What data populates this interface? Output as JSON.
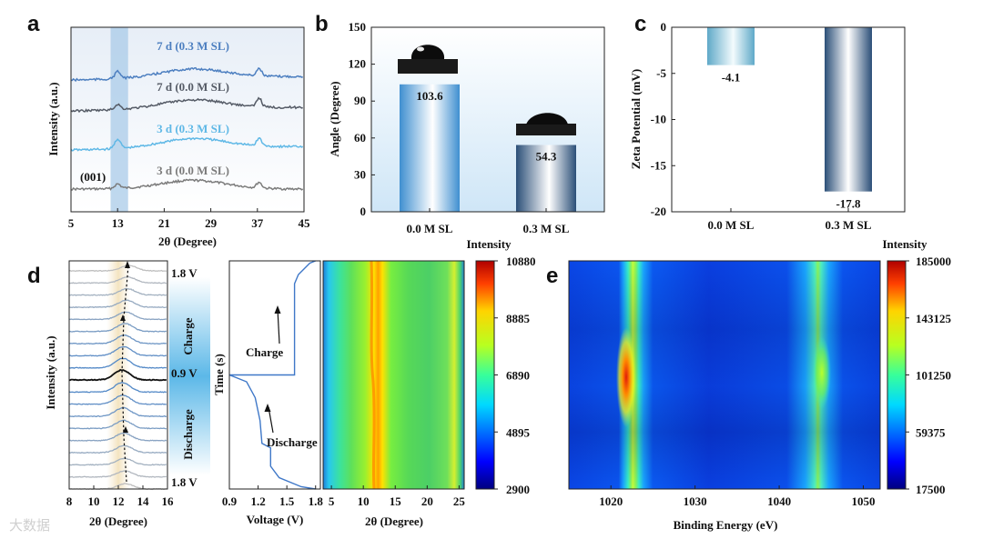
{
  "chart_data": [
    {
      "id": "a",
      "panel_label": "a",
      "type": "line",
      "xlabel": "2θ (Degree)",
      "ylabel": "Intensity (a.u.)",
      "xlim": [
        5,
        45
      ],
      "xticks": [
        "5",
        "13",
        "21",
        "29",
        "37",
        "45"
      ],
      "peak_annotation": "(001)",
      "highlight_range": [
        11.8,
        14.8
      ],
      "series": [
        {
          "name": "3 d (0.0 M SL)",
          "color": "#7b7b7b",
          "peaks": [
            [
              13,
              0.35
            ],
            [
              26,
              0.25
            ],
            [
              37.3,
              0.45
            ]
          ]
        },
        {
          "name": "3 d (0.3 M SL)",
          "color": "#5fb8e6",
          "peaks": [
            [
              13,
              0.75
            ],
            [
              26,
              0.35
            ],
            [
              37.3,
              0.6
            ]
          ]
        },
        {
          "name": "7 d (0.0 M SL)",
          "color": "#555b66",
          "peaks": [
            [
              13,
              0.4
            ],
            [
              26,
              0.3
            ],
            [
              37.3,
              0.7
            ]
          ]
        },
        {
          "name": "7 d (0.3 M SL)",
          "color": "#4d7fc0",
          "peaks": [
            [
              13,
              0.55
            ],
            [
              26,
              0.3
            ],
            [
              37.3,
              0.6
            ]
          ]
        }
      ]
    },
    {
      "id": "b",
      "panel_label": "b",
      "type": "bar",
      "categories": [
        "0.0 M SL",
        "0.3 M SL"
      ],
      "values": [
        103.6,
        54.3
      ],
      "value_labels": [
        "103.6",
        "54.3"
      ],
      "ylabel": "Angle (Degree)",
      "ylim": [
        0,
        150
      ],
      "yticks": [
        "0",
        "30",
        "60",
        "90",
        "120",
        "150"
      ],
      "colors": [
        "#3f8fd0",
        "#2b4f78"
      ]
    },
    {
      "id": "c",
      "panel_label": "c",
      "type": "bar",
      "categories": [
        "0.0 M SL",
        "0.3 M SL"
      ],
      "values": [
        -4.1,
        -17.8
      ],
      "value_labels": [
        "-4.1",
        "-17.8"
      ],
      "ylabel": "Zeta Potential (mV)",
      "ylim": [
        -20,
        0
      ],
      "yticks": [
        "0",
        "-5",
        "-10",
        "-15",
        "-20"
      ],
      "colors": [
        "#5fa9c8",
        "#2b4f78"
      ]
    },
    {
      "id": "d",
      "panel_label": "d",
      "type": "line",
      "left_xlabel": "2θ (Degree)",
      "left_ylabel": "Intensity (a.u.)",
      "left_xticks": [
        "8",
        "10",
        "12",
        "14",
        "16"
      ],
      "side_labels": [
        "Charge",
        "Discharge"
      ],
      "voltage_labels": [
        "1.8 V",
        "0.9 V",
        "1.8 V"
      ],
      "curve_xlabel": "Voltage (V)",
      "curve_ylabel": "Time (s)",
      "curve_xticks": [
        "0.9",
        "1.2",
        "1.5",
        "1.8"
      ],
      "curve_annotations": [
        "Charge",
        "Discharge"
      ],
      "charge_curve": [
        [
          1.8,
          0
        ],
        [
          1.74,
          0.01
        ],
        [
          1.62,
          0.06
        ],
        [
          1.58,
          0.1
        ],
        [
          1.58,
          0.5
        ],
        [
          1.4,
          0.5
        ],
        [
          0.9,
          0.5
        ]
      ],
      "discharge_curve": [
        [
          0.9,
          0.5
        ],
        [
          1.08,
          0.53
        ],
        [
          1.17,
          0.6
        ],
        [
          1.22,
          0.7
        ],
        [
          1.24,
          0.8
        ],
        [
          1.33,
          0.82
        ],
        [
          1.33,
          0.9
        ],
        [
          1.42,
          0.95
        ],
        [
          1.65,
          0.99
        ],
        [
          1.8,
          1.0
        ]
      ],
      "heatmap_xlabel": "2θ (Degree)",
      "heatmap_xticks": [
        "5",
        "10",
        "15",
        "20",
        "25"
      ],
      "colorbar_label": "Intensity",
      "colorbar_ticks": [
        "10880",
        "8885",
        "6890",
        "4895",
        "2900"
      ],
      "colorbar_range": [
        2900,
        10880
      ]
    },
    {
      "id": "e",
      "panel_label": "e",
      "type": "heatmap",
      "xlabel": "Binding Energy (eV)",
      "xlim": [
        1015,
        1052
      ],
      "xticks": [
        "1020",
        "1030",
        "1040",
        "1050"
      ],
      "peaks_ev": [
        1022,
        1045
      ],
      "colorbar_label": "Intensity",
      "colorbar_ticks": [
        "185000",
        "143125",
        "101250",
        "59375",
        "17500"
      ],
      "colorbar_range": [
        17500,
        185000
      ]
    }
  ],
  "figure": {
    "heatmap_center_label": "Intensity",
    "watermark": "大数据"
  }
}
